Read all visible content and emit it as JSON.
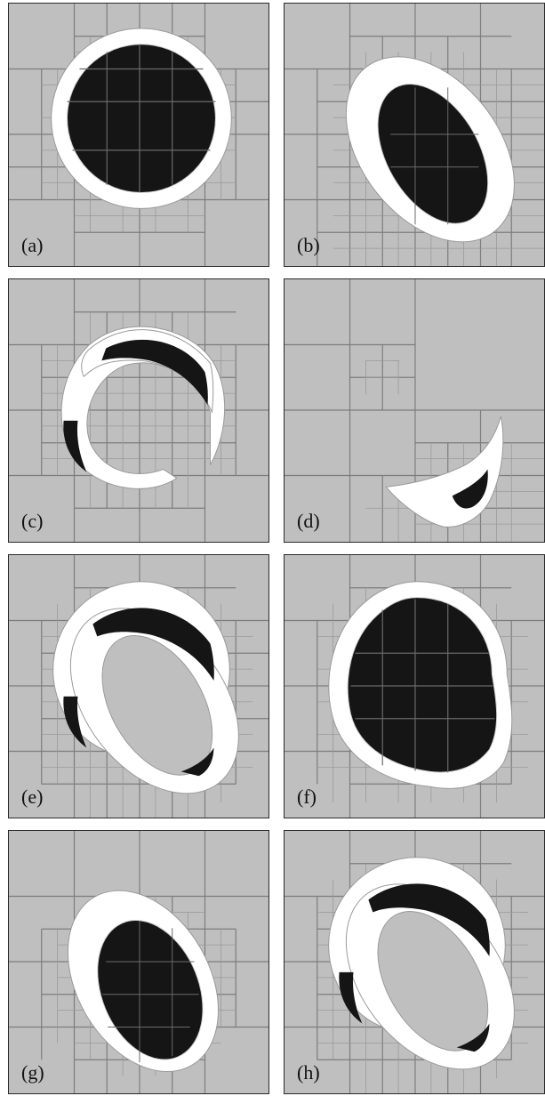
{
  "colors": {
    "background": "#bfbfbf",
    "grid_line": "#7d7d7d",
    "fine_grid": "#9a9a9a",
    "ring": "#ffffff",
    "core": "#151515",
    "frame": "#2a2a2a"
  },
  "panels": [
    {
      "label": "(a)",
      "shape": "full-disk"
    },
    {
      "label": "(b)",
      "shape": "tilted-ellipse"
    },
    {
      "label": "(c)",
      "shape": "hooked-crescents"
    },
    {
      "label": "(d)",
      "shape": "small-crescent"
    },
    {
      "label": "(e)",
      "shape": "double-ring"
    },
    {
      "label": "(f)",
      "shape": "full-blob"
    },
    {
      "label": "(g)",
      "shape": "tilted-ellipse-small"
    },
    {
      "label": "(h)",
      "shape": "double-ring"
    }
  ]
}
